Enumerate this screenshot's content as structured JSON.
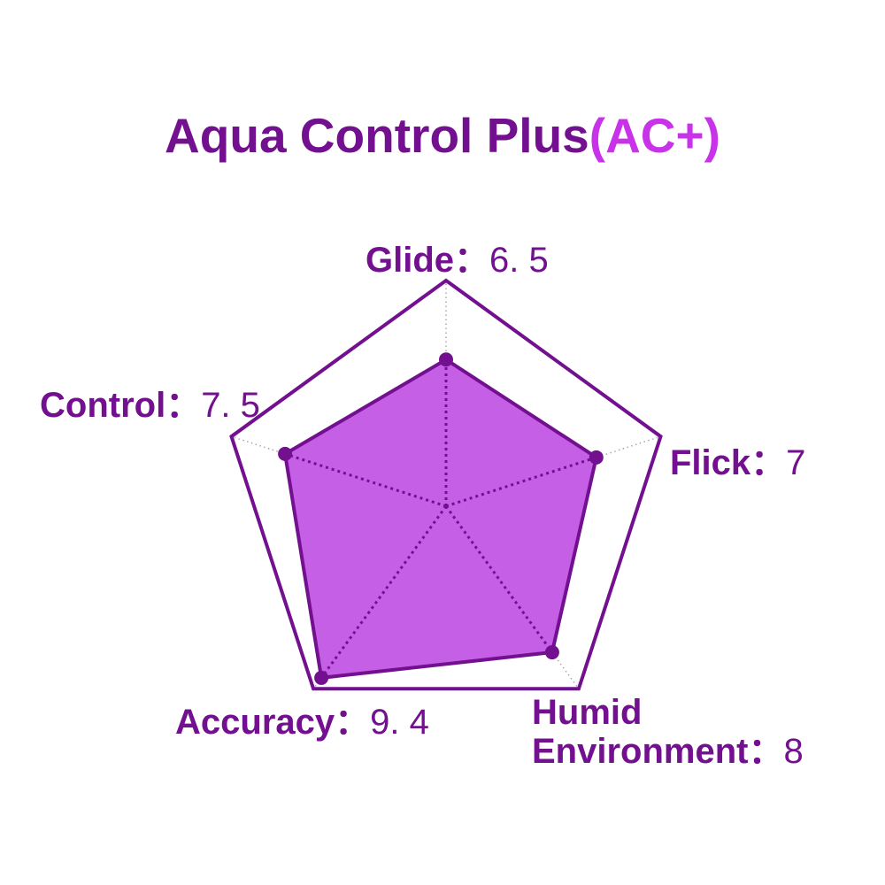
{
  "title": {
    "main": "Aqua Control Plus",
    "accent": "(AC+)"
  },
  "axis_labels": [
    {
      "id": "glide",
      "name": "Glide",
      "separator": "：",
      "value": "6. 5"
    },
    {
      "id": "control",
      "name": "Control",
      "separator": "：",
      "value": "7. 5"
    },
    {
      "id": "flick",
      "name": "Flick",
      "separator": "：",
      "value": "7"
    },
    {
      "id": "accuracy",
      "name": "Accuracy",
      "separator": "：",
      "value": "9. 4"
    },
    {
      "id": "humid",
      "name": "Humid Environment",
      "separator": "：",
      "value": "8"
    }
  ],
  "chart_data": {
    "type": "radar",
    "title": "Aqua Control Plus(AC+)",
    "categories": [
      "Glide",
      "Flick",
      "Humid Environment",
      "Accuracy",
      "Control"
    ],
    "values": [
      6.5,
      7,
      8,
      9.4,
      7.5
    ],
    "max": 10,
    "grid": {
      "shape": "pentagon",
      "rings": 1,
      "spoke_style": "dotted-gray"
    },
    "colors": {
      "outline": "#72108F",
      "fill": "#C55FE6",
      "radius_lines": "#72108F",
      "points": "#72108F",
      "spokes": "#A8A8A8",
      "title_main": "#72108F",
      "title_accent": "#C832E8",
      "labels": "#72108F"
    }
  }
}
